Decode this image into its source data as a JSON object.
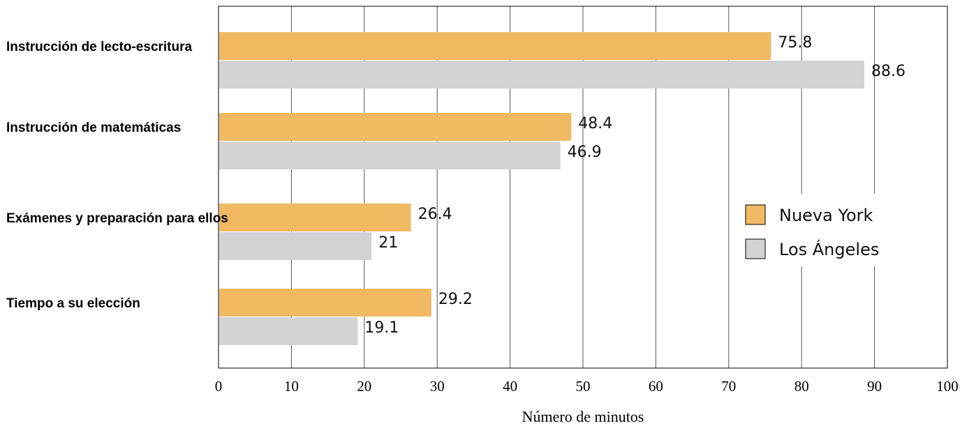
{
  "chart_data": {
    "type": "bar",
    "orientation": "horizontal",
    "categories": [
      "Instrucción de lecto-escritura",
      "Instrucción de matemáticas",
      "Exámenes y preparación para ellos",
      "Tiempo a su elección"
    ],
    "series": [
      {
        "name": "Nueva York",
        "values": [
          75.8,
          48.4,
          26.4,
          29.2
        ],
        "labels": [
          "75.8",
          "48.4",
          "26.4",
          "29.2"
        ],
        "color": "#f0b962"
      },
      {
        "name": "Los Ángeles",
        "values": [
          88.6,
          46.9,
          21,
          19.1
        ],
        "labels": [
          "88.6",
          "46.9",
          "21",
          "19.1"
        ],
        "color": "#d3d3d5"
      }
    ],
    "xlabel": "Número de minutos",
    "ylabel": "",
    "xlim": [
      0,
      100
    ],
    "xticks": [
      0,
      10,
      20,
      30,
      40,
      50,
      60,
      70,
      80,
      90,
      100
    ],
    "grid": true,
    "legend": "right"
  }
}
